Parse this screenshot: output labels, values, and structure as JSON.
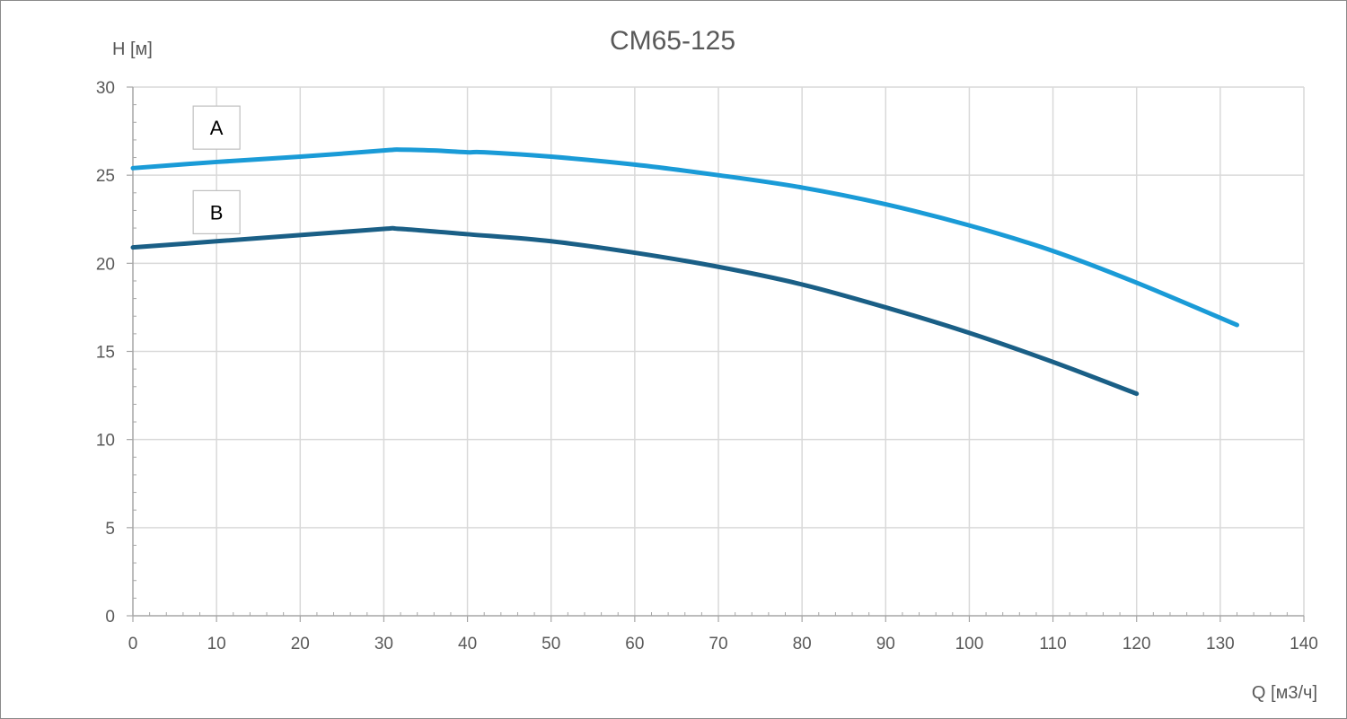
{
  "chart_data": {
    "type": "line",
    "title": "CM65-125",
    "xlabel": "Q [м3/ч]",
    "ylabel": "H [м]",
    "xlim": [
      0,
      140
    ],
    "ylim": [
      0,
      30
    ],
    "x_ticks": [
      "0",
      "10",
      "20",
      "30",
      "40",
      "50",
      "60",
      "70",
      "80",
      "90",
      "100",
      "110",
      "120",
      "130",
      "140"
    ],
    "y_ticks": [
      "0",
      "5",
      "10",
      "15",
      "20",
      "25",
      "30"
    ],
    "grid": true,
    "series": [
      {
        "name": "A",
        "color": "#1a9bd7",
        "x": [
          0,
          10,
          20,
          30,
          32,
          36,
          40,
          42,
          50,
          60,
          70,
          80,
          90,
          100,
          110,
          120,
          132
        ],
        "y": [
          25.4,
          25.75,
          26.05,
          26.4,
          26.45,
          26.4,
          26.3,
          26.3,
          26.05,
          25.6,
          25.0,
          24.3,
          23.35,
          22.15,
          20.7,
          18.9,
          16.5
        ]
      },
      {
        "name": "B",
        "color": "#1a5f86",
        "x": [
          0,
          10,
          20,
          30,
          32,
          40,
          50,
          60,
          70,
          80,
          90,
          100,
          110,
          120
        ],
        "y": [
          20.9,
          21.25,
          21.6,
          21.95,
          21.95,
          21.65,
          21.25,
          20.6,
          19.8,
          18.8,
          17.5,
          16.05,
          14.4,
          12.6
        ]
      }
    ]
  }
}
